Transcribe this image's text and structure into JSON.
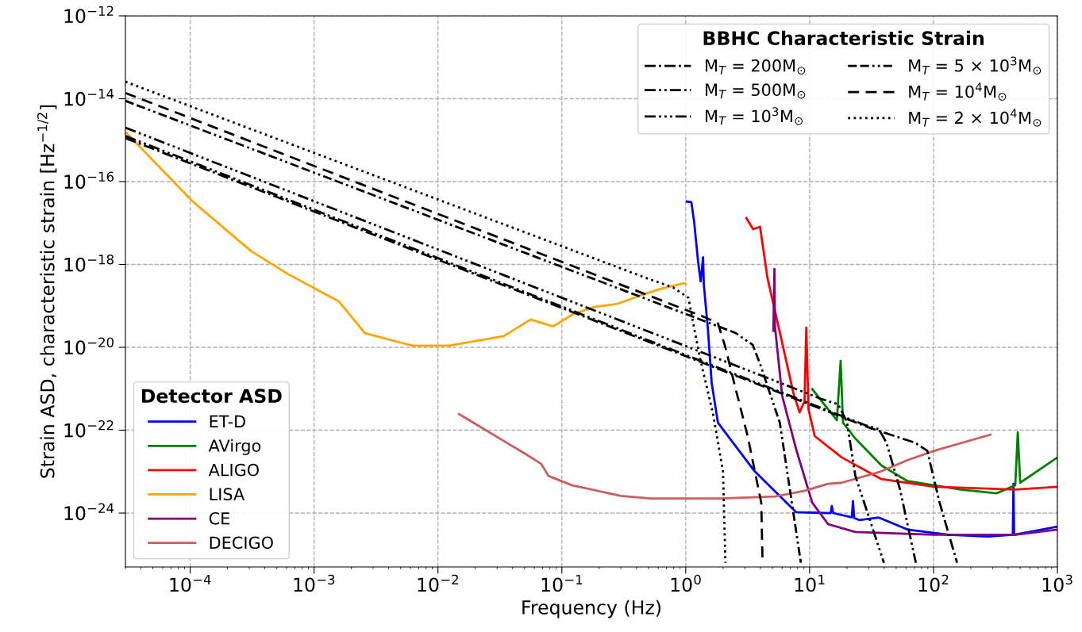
{
  "chart_data": [
    {
      "type": "line",
      "xlabel": "Frequency (Hz)",
      "ylabel": "Strain ASD, characteristic strain [Hz$^{−1/2}$]",
      "legend_title": "Detector ASD",
      "legend": "bottom left",
      "log": "xy",
      "grid": true,
      "line_style": "solid",
      "xlim": [
        3e-05,
        1000
      ],
      "ylim": [
        5e-26,
        1e-12
      ],
      "xticks": [
        {
          "value": 0.0001,
          "label": "10$^{−4}$"
        },
        {
          "value": 0.001,
          "label": "10$^{−3}$"
        },
        {
          "value": 0.01,
          "label": "10$^{−2}$"
        },
        {
          "value": 0.1,
          "label": "10$^{−1}$"
        },
        {
          "value": 1,
          "label": "10$^{0}$"
        },
        {
          "value": 10,
          "label": "10$^{1}$"
        },
        {
          "value": 100,
          "label": "10$^{2}$"
        },
        {
          "value": 1000,
          "label": "10$^{3}$"
        }
      ],
      "yticks": [
        {
          "value": 1e-24,
          "label": "10$^{−24}$"
        },
        {
          "value": 1e-22,
          "label": "10$^{−22}$"
        },
        {
          "value": 1e-20,
          "label": "10$^{−20}$"
        },
        {
          "value": 1e-18,
          "label": "10$^{−18}$"
        },
        {
          "value": 1e-16,
          "label": "10$^{−16}$"
        },
        {
          "value": 1e-14,
          "label": "10$^{−14}$"
        },
        {
          "value": 1e-12,
          "label": "10$^{−12}$"
        }
      ],
      "series": [
        {
          "name": "ET-D",
          "color": "#0000ff",
          "x": [
            1.02,
            1.11,
            1.17,
            1.26,
            1.32,
            1.38,
            1.4,
            1.51,
            1.62,
            1.82,
            3.6,
            7.8,
            14.8,
            15.1,
            15.5,
            21.9,
            22.4,
            22.9,
            25.1,
            36.3,
            61.7,
            132,
            275,
            437,
            442,
            447,
            1000
          ],
          "values": [
            3.3e-17,
            3.2e-17,
            1.05e-17,
            1.12e-18,
            3.9e-19,
            1.5e-18,
            3.2e-19,
            2.75e-20,
            1.38e-21,
            1.51e-22,
            1.02e-23,
            1.05e-24,
            1e-24,
            1.48e-24,
            1e-24,
            7.9e-25,
            1.95e-24,
            7.6e-25,
            6.8e-25,
            7.8e-25,
            4e-25,
            3e-25,
            2.7e-25,
            3e-25,
            5.1e-24,
            3e-25,
            4.7e-25
          ]
        },
        {
          "name": "AVirgo",
          "color": "#008000",
          "x": [
            10.5,
            14.1,
            16.6,
            17.8,
            18.6,
            23.4,
            38,
            61.7,
            166,
            324,
            457,
            479,
            501,
            1000
          ],
          "values": [
            9.8e-22,
            3.2e-22,
            1.74e-22,
            4.7e-21,
            1.51e-22,
            6.3e-23,
            1.41e-23,
            5.9e-24,
            3.7e-24,
            3e-24,
            4.7e-24,
            8.9e-23,
            5.4e-24,
            2.2e-23
          ]
        },
        {
          "name": "ALIGO",
          "color": "#ff0000",
          "x": [
            3.09,
            3.5,
            3.98,
            4.57,
            5.75,
            7.4,
            8.3,
            9.1,
            9.4,
            9.8,
            11.0,
            18.2,
            38,
            102,
            457,
            1000
          ],
          "values": [
            1.32e-17,
            7.1e-18,
            8.1e-18,
            4.7e-19,
            2.3e-20,
            7.8e-22,
            2.7e-22,
            5e-22,
            3e-20,
            3.2e-22,
            7.2e-23,
            2.2e-23,
            6.6e-24,
            4.3e-24,
            3.7e-24,
            4.3e-24
          ]
        },
        {
          "name": "LISA",
          "color": "#ffa500",
          "x": [
            3.07e-05,
            0.000105,
            0.00031,
            0.00062,
            0.00158,
            0.00257,
            0.0062,
            0.0123,
            0.034,
            0.056,
            0.085,
            0.123,
            0.186,
            0.28,
            0.42,
            0.63,
            0.95,
            1.0
          ],
          "values": [
            1.48e-15,
            3.3e-17,
            2.1e-18,
            5.8e-19,
            1.29e-19,
            2.2e-20,
            1.1e-20,
            1.1e-20,
            1.86e-20,
            4.7e-20,
            3.2e-20,
            6.3e-20,
            9.5e-20,
            1.12e-19,
            1.74e-19,
            2.6e-19,
            3.5e-19,
            3.4e-19
          ]
        },
        {
          "name": "CE",
          "color": "#800080",
          "x": [
            5.1,
            5.2,
            5.25,
            6.0,
            7.8,
            10.5,
            14.1,
            23.4,
            102,
            457,
            1000
          ],
          "values": [
            2.5e-20,
            7.8e-19,
            3.2e-20,
            6.8e-22,
            3.4e-23,
            1.78e-24,
            5.4e-25,
            3.5e-25,
            3e-25,
            3e-25,
            4e-25
          ]
        },
        {
          "name": "DECIGO",
          "color": "#cd5c5c",
          "x": [
            0.0148,
            0.0204,
            0.037,
            0.05,
            0.068,
            0.078,
            0.12,
            0.3,
            0.52,
            1.9,
            5.25,
            9.3,
            14.1,
            18.2,
            38,
            61.7,
            102,
            288
          ],
          "values": [
            2.45e-22,
            1.38e-22,
            4.7e-23,
            2.75e-23,
            1.55e-23,
            7.9e-24,
            4.7e-24,
            2.6e-24,
            2.24e-24,
            2.24e-24,
            2.5e-24,
            3.5e-24,
            5.1e-24,
            5.4e-24,
            1.02e-23,
            1.9e-23,
            3.2e-23,
            7.8e-23
          ]
        }
      ]
    },
    {
      "type": "line",
      "legend_title": "BBHC Characteristic Strain",
      "legend": "top right",
      "log": "xy",
      "xlim": [
        3e-05,
        1000
      ],
      "ylim": [
        5e-26,
        1e-12
      ],
      "series": [
        {
          "name": "M$_{T}$ = 200M$_{⊙}$",
          "color": "#000000",
          "line_style": "dashdot",
          "x": [
            3e-05,
            31.6,
            70.8,
            89,
            112,
            155
          ],
          "values": [
            1.12e-15,
            1.1e-22,
            5e-23,
            3.2e-23,
            1.78e-24,
            6.3e-26
          ]
        },
        {
          "name": "M$_{T}$ = 500M$_{⊙}$",
          "color": "#000000",
          "line_style": "dashdotdot",
          "x": [
            3e-05,
            28.2,
            36.3,
            41.7,
            53.7,
            72
          ],
          "values": [
            1.26e-15,
            1.32e-22,
            1.05e-22,
            5e-23,
            3.7e-24,
            6.3e-26
          ]
        },
        {
          "name": "M$_{T}$ = 10$^{3}$M$_{⊙}$",
          "color": "#000000",
          "line_style": "dashdotdotdot",
          "x": [
            3e-05,
            12.6,
            17.0,
            20,
            23.4,
            39.8
          ],
          "values": [
            2e-15,
            5.6e-22,
            4.2e-22,
            1.58e-22,
            7.9e-24,
            6.3e-26
          ]
        },
        {
          "name": "M$_{T}$ = 5 × 10$^{3}$M$_{⊙}$",
          "color": "#000000",
          "line_style": "dashdashdotdot",
          "x": [
            3e-05,
            2.51,
            3.47,
            3.98,
            5.75,
            8.5
          ],
          "values": [
            8.9e-15,
            2.24e-20,
            1.15e-20,
            4e-21,
            1.5e-22,
            6.3e-26
          ]
        },
        {
          "name": "M$_{T}$ = 10$^{4}$M$_{⊙}$",
          "color": "#000000",
          "line_style": "dashed",
          "x": [
            3e-05,
            1.41,
            1.82,
            2.09,
            2.45,
            3.16,
            4.07,
            4.17
          ],
          "values": [
            1.38e-14,
            5.4e-20,
            3.8e-20,
            1e-20,
            1.45e-21,
            7.2e-23,
            1.78e-24,
            6.3e-26
          ]
        },
        {
          "name": "M$_{T}$ = 2 × 10$^{4}$M$_{⊙}$",
          "color": "#000000",
          "line_style": "dotted",
          "x": [
            3e-05,
            0.5,
            0.79,
            1.05,
            1.29,
            1.66,
            2.0,
            2.09
          ],
          "values": [
            2.57e-14,
            4.5e-19,
            2.8e-19,
            1.58e-19,
            6.3e-21,
            2.5e-22,
            1e-23,
            6.3e-26
          ]
        }
      ]
    }
  ]
}
